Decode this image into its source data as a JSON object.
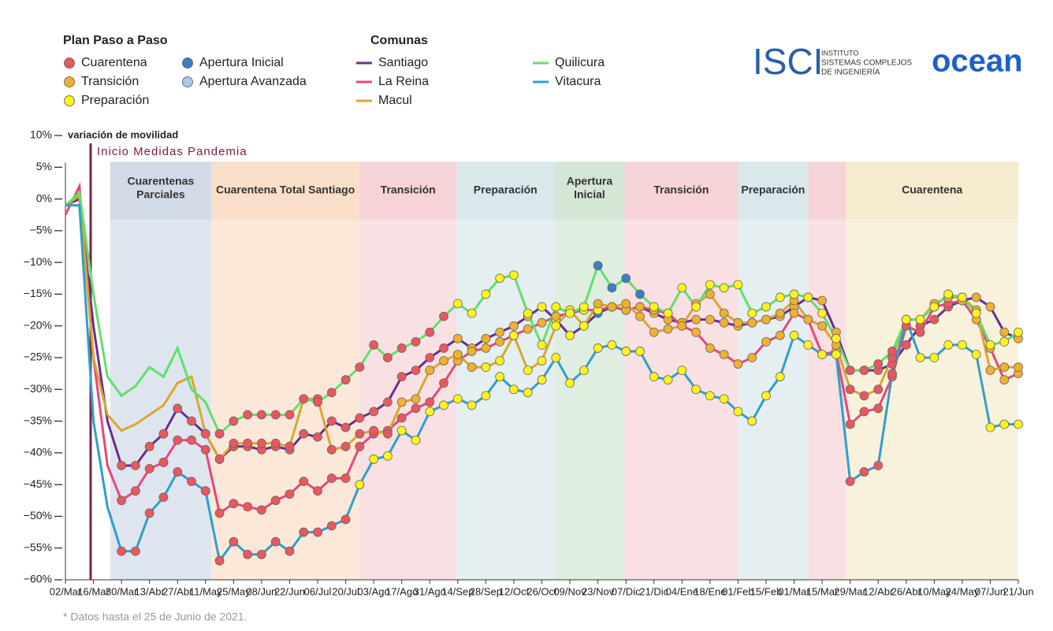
{
  "chart_data": {
    "type": "line",
    "legend_phases_title": "Plan Paso a Paso",
    "legend_series_title": "Comunas",
    "phases": [
      {
        "name": "Cuarentena",
        "color": "#e8585e"
      },
      {
        "name": "Transición",
        "color": "#f0b030"
      },
      {
        "name": "Preparación",
        "color": "#fff21f"
      },
      {
        "name": "Apertura Inicial",
        "color": "#3a7fc1"
      },
      {
        "name": "Apertura Avanzada",
        "color": "#a9c9e8"
      }
    ],
    "y_label": "variación de movilidad",
    "annotation": {
      "label": "Inicio Medidas Pandemia",
      "x": 1.8,
      "color": "#7a2048"
    },
    "note": "* Datos hasta el 25 de Junio de 2021.",
    "ylim": [
      -60,
      10
    ],
    "yticks": [
      {
        "value": 10,
        "label": "10%"
      },
      {
        "value": 5,
        "label": "5%"
      },
      {
        "value": 0,
        "label": "0%"
      },
      {
        "value": -5,
        "label": "−5%"
      },
      {
        "value": -10,
        "label": "−10%"
      },
      {
        "value": -15,
        "label": "−15%"
      },
      {
        "value": -20,
        "label": "−20%"
      },
      {
        "value": -25,
        "label": "−25%"
      },
      {
        "value": -30,
        "label": "−30%"
      },
      {
        "value": -35,
        "label": "−35%"
      },
      {
        "value": -40,
        "label": "−40%"
      },
      {
        "value": -45,
        "label": "−45%"
      },
      {
        "value": -50,
        "label": "−50%"
      },
      {
        "value": -55,
        "label": "−55%"
      },
      {
        "value": -60,
        "label": "−60%"
      }
    ],
    "categories": [
      "02/Mar",
      null,
      "16/Mar",
      null,
      "30/Mar",
      null,
      "13/Abr",
      null,
      "27/Abr",
      null,
      "11/May",
      null,
      "25/May",
      null,
      "08/Jun",
      null,
      "22/Jun",
      null,
      "06/Jul",
      null,
      "20/Jul",
      null,
      "03/Ago",
      null,
      "17/Ago",
      null,
      "31/Ago",
      null,
      "14/Sep",
      null,
      "28/Sep",
      null,
      "12/Oct",
      null,
      "26/Oct",
      null,
      "09/Nov",
      null,
      "23/Nov",
      null,
      "07/Dic",
      null,
      "21/Dic",
      null,
      "04/Ene",
      null,
      "18/Ene",
      null,
      "01/Feb",
      null,
      "15/Feb",
      null,
      "01/Mar",
      null,
      "15/Mar",
      null,
      "29/Mar",
      null,
      "12/Abr",
      null,
      "26/Abr",
      null,
      "10/May",
      null,
      "24/May",
      null,
      "07/Jun",
      null,
      "21/Jun"
    ],
    "bands": [
      {
        "label": [
          "Cuarentenas",
          "Parciales"
        ],
        "start": 3.2,
        "end": 10.4,
        "color": "#c5cfe0"
      },
      {
        "label": [
          "Cuarentena Total Santiago"
        ],
        "start": 10.4,
        "end": 21,
        "color": "#f8d6ba"
      },
      {
        "label": [
          "Transición"
        ],
        "start": 21,
        "end": 27.9,
        "color": "#f2c6cc"
      },
      {
        "label": [
          "Preparación"
        ],
        "start": 27.9,
        "end": 34.9,
        "color": "#cfe2e6"
      },
      {
        "label": [
          "Apertura",
          "Inicial"
        ],
        "start": 34.9,
        "end": 39.9,
        "color": "#c6e0c8"
      },
      {
        "label": [
          "Transición"
        ],
        "start": 39.9,
        "end": 48,
        "color": "#f2c6cc"
      },
      {
        "label": [
          "Preparación"
        ],
        "start": 48,
        "end": 53,
        "color": "#cfe2e6"
      },
      {
        "label": null,
        "start": 53,
        "end": 55.7,
        "color": "#f2c6cc"
      },
      {
        "label": [
          "Cuarentena"
        ],
        "start": 55.7,
        "end": 68,
        "color": "#f3e6c0"
      }
    ],
    "series": [
      {
        "name": "Santiago",
        "color": "#6a2c91",
        "values": [
          -1,
          0,
          -20,
          -35,
          -42,
          -42,
          -39,
          -37,
          -33,
          -35,
          -37,
          -41,
          -39,
          -39,
          -39.5,
          -39,
          -39.5,
          -37,
          -37.5,
          -35,
          -36,
          -34.5,
          -33.5,
          -32,
          -28,
          -27,
          -25,
          -23.5,
          -22,
          -23.5,
          -22,
          -21,
          -20,
          -18.5,
          -17,
          -19,
          -21.5,
          -20,
          -18,
          -17,
          -17.5,
          -17,
          -18,
          -19,
          -19.5,
          -19,
          -19,
          -19.5,
          -20,
          -19.5,
          -19,
          -18.5,
          -17,
          -15.5,
          -16,
          -21,
          -27,
          -27,
          -27,
          -26,
          -23,
          -20,
          -19,
          -17,
          -16,
          -15.5,
          -17,
          -21,
          -22
        ],
        "phases": [
          null,
          null,
          null,
          null,
          0,
          0,
          0,
          0,
          0,
          0,
          0,
          0,
          0,
          0,
          0,
          0,
          0,
          0,
          0,
          0,
          0,
          0,
          0,
          0,
          0,
          0,
          0,
          0,
          1,
          1,
          1,
          1,
          1,
          1,
          2,
          2,
          2,
          2,
          3,
          3,
          3,
          3,
          1,
          1,
          1,
          1,
          1,
          1,
          1,
          1,
          1,
          1,
          1,
          1,
          1,
          1,
          0,
          0,
          0,
          0,
          0,
          0,
          0,
          0,
          1,
          1,
          1,
          1,
          1
        ]
      },
      {
        "name": "La Reina",
        "color": "#e8467c",
        "values": [
          -2.5,
          2,
          -25,
          -42,
          -47.5,
          -46,
          -42.5,
          -41.5,
          -38,
          -38,
          -39.5,
          -49.5,
          -48,
          -48.5,
          -49,
          -47.5,
          -46.5,
          -44.5,
          -46,
          -44,
          -44,
          -39,
          -37,
          -36.5,
          -34.5,
          -33,
          -32,
          -29,
          -25.5,
          -24,
          -23.5,
          -22.5,
          -21.5,
          -20.5,
          -19.5,
          -18.5,
          -18,
          -17.5,
          -17.5,
          -17,
          -17.5,
          -17,
          -17.5,
          -18,
          -20,
          -21,
          -23.5,
          -24.5,
          -26,
          -25,
          -22.5,
          -21.5,
          -18,
          -19,
          -24.5,
          -24,
          -35.5,
          -33.5,
          -33,
          -28,
          -20,
          -21,
          -17,
          -16.5,
          -16,
          -19,
          -23.5,
          -28.5,
          -27.5
        ],
        "phases": [
          null,
          null,
          null,
          null,
          0,
          0,
          0,
          0,
          0,
          0,
          0,
          0,
          0,
          0,
          0,
          0,
          0,
          0,
          0,
          0,
          0,
          0,
          0,
          0,
          0,
          0,
          0,
          0,
          1,
          1,
          1,
          1,
          1,
          1,
          1,
          1,
          2,
          2,
          2,
          2,
          1,
          1,
          1,
          1,
          1,
          1,
          1,
          1,
          1,
          1,
          1,
          1,
          1,
          1,
          1,
          1,
          0,
          0,
          0,
          0,
          0,
          0,
          0,
          0,
          1,
          1,
          1,
          1,
          1
        ]
      },
      {
        "name": "Macul",
        "color": "#d9a72e",
        "values": [
          -1,
          0.5,
          -25,
          -34,
          -36.5,
          -35.5,
          -34,
          -32.5,
          -29,
          -28,
          -37,
          -41,
          -38.5,
          -38.5,
          -38.5,
          -38.5,
          -39,
          -31.5,
          -31.5,
          -39.5,
          -39,
          -37,
          -36.5,
          -37,
          -32,
          -31.5,
          -27,
          -25.5,
          -24.5,
          -26.5,
          -26.5,
          -25.5,
          -21.5,
          -27,
          -25.5,
          -20,
          -17.5,
          -20,
          -16.5,
          -17,
          -16.5,
          -18.5,
          -21,
          -20.5,
          -20,
          -16.5,
          -15,
          -18,
          -19.5,
          -19.5,
          -19,
          -18,
          -16,
          -19,
          -20,
          -23,
          -30,
          -31,
          -30,
          -25,
          -19,
          -19,
          -16.5,
          -15.5,
          -15.5,
          -17.5,
          -27,
          -26.5,
          -26.5
        ],
        "phases": [
          null,
          null,
          null,
          null,
          null,
          null,
          null,
          null,
          null,
          null,
          0,
          0,
          0,
          0,
          0,
          0,
          0,
          0,
          0,
          0,
          0,
          0,
          0,
          0,
          1,
          1,
          1,
          1,
          1,
          1,
          2,
          2,
          2,
          2,
          2,
          2,
          2,
          2,
          1,
          1,
          1,
          1,
          1,
          1,
          1,
          1,
          1,
          1,
          1,
          1,
          1,
          1,
          1,
          1,
          1,
          1,
          0,
          0,
          0,
          0,
          1,
          1,
          1,
          1,
          1,
          1,
          1,
          1,
          1
        ]
      },
      {
        "name": "Quilicura",
        "color": "#5de26a",
        "values": [
          -1,
          1,
          -15,
          -28,
          -31,
          -29.5,
          -26.5,
          -28,
          -23.5,
          -30,
          -32,
          -37,
          -35,
          -34,
          -34,
          -34,
          -34,
          -31.5,
          -32,
          -30.5,
          -28.5,
          -26.5,
          -23,
          -25,
          -23.5,
          -22.5,
          -21,
          -18.5,
          -16.5,
          -18,
          -15,
          -12.5,
          -12,
          -18,
          -23,
          -17,
          -18,
          -17,
          -10.5,
          -14,
          -12.5,
          -15,
          -17,
          -18,
          -14,
          -17,
          -13.5,
          -14,
          -13.5,
          -18,
          -17,
          -15.5,
          -15,
          -15.5,
          -18,
          -22,
          -27,
          -27,
          -26,
          -24,
          -19,
          -19,
          -17,
          -15,
          -15.5,
          -18,
          -23,
          -22.5,
          -21
        ],
        "phases": [
          null,
          null,
          null,
          null,
          null,
          null,
          null,
          null,
          null,
          null,
          null,
          0,
          0,
          0,
          0,
          0,
          0,
          0,
          0,
          0,
          0,
          0,
          0,
          0,
          0,
          0,
          0,
          0,
          2,
          2,
          2,
          2,
          2,
          2,
          2,
          2,
          2,
          2,
          3,
          3,
          3,
          3,
          2,
          2,
          2,
          2,
          2,
          2,
          2,
          2,
          2,
          2,
          2,
          2,
          2,
          2,
          0,
          0,
          0,
          0,
          2,
          2,
          2,
          2,
          2,
          2,
          2,
          2,
          2
        ]
      },
      {
        "name": "Vitacura",
        "color": "#2f9fc9",
        "values": [
          -1,
          -1,
          -35,
          -48.5,
          -55.5,
          -55.5,
          -49.5,
          -47,
          -43,
          -44.5,
          -46,
          -57,
          -54,
          -56,
          -56,
          -54,
          -55.5,
          -52.5,
          -52.5,
          -51.5,
          -50.5,
          -45,
          -41,
          -40.5,
          -36.5,
          -38,
          -33.5,
          -32.5,
          -31.5,
          -32.5,
          -31,
          -28,
          -30,
          -30.5,
          -28.5,
          -25,
          -29,
          -27,
          -23.5,
          -23,
          -24,
          -24,
          -28,
          -28.5,
          -27,
          -30,
          -31,
          -31.5,
          -33.5,
          -35,
          -31,
          -28,
          -21.5,
          -23,
          -24.5,
          -24.5,
          -44.5,
          -43,
          -42,
          -27.5,
          -19,
          -25,
          -25,
          -23,
          -23,
          -24.5,
          -36,
          -35.5,
          -35.5
        ],
        "phases": [
          null,
          null,
          null,
          null,
          0,
          0,
          0,
          0,
          0,
          0,
          0,
          0,
          0,
          0,
          0,
          0,
          0,
          0,
          0,
          0,
          0,
          2,
          2,
          2,
          2,
          2,
          2,
          2,
          2,
          2,
          2,
          2,
          2,
          2,
          2,
          2,
          2,
          2,
          2,
          2,
          2,
          2,
          2,
          2,
          2,
          2,
          2,
          2,
          2,
          2,
          2,
          2,
          2,
          2,
          2,
          2,
          0,
          0,
          0,
          0,
          2,
          2,
          2,
          2,
          2,
          2,
          2,
          2,
          2
        ]
      }
    ]
  },
  "logos": {
    "isci": "ISCI",
    "isci_lines": [
      "INSTITUTO",
      "SISTEMAS COMPLEJOS",
      "DE INGENIERÍA"
    ],
    "ocean": "ocean"
  }
}
